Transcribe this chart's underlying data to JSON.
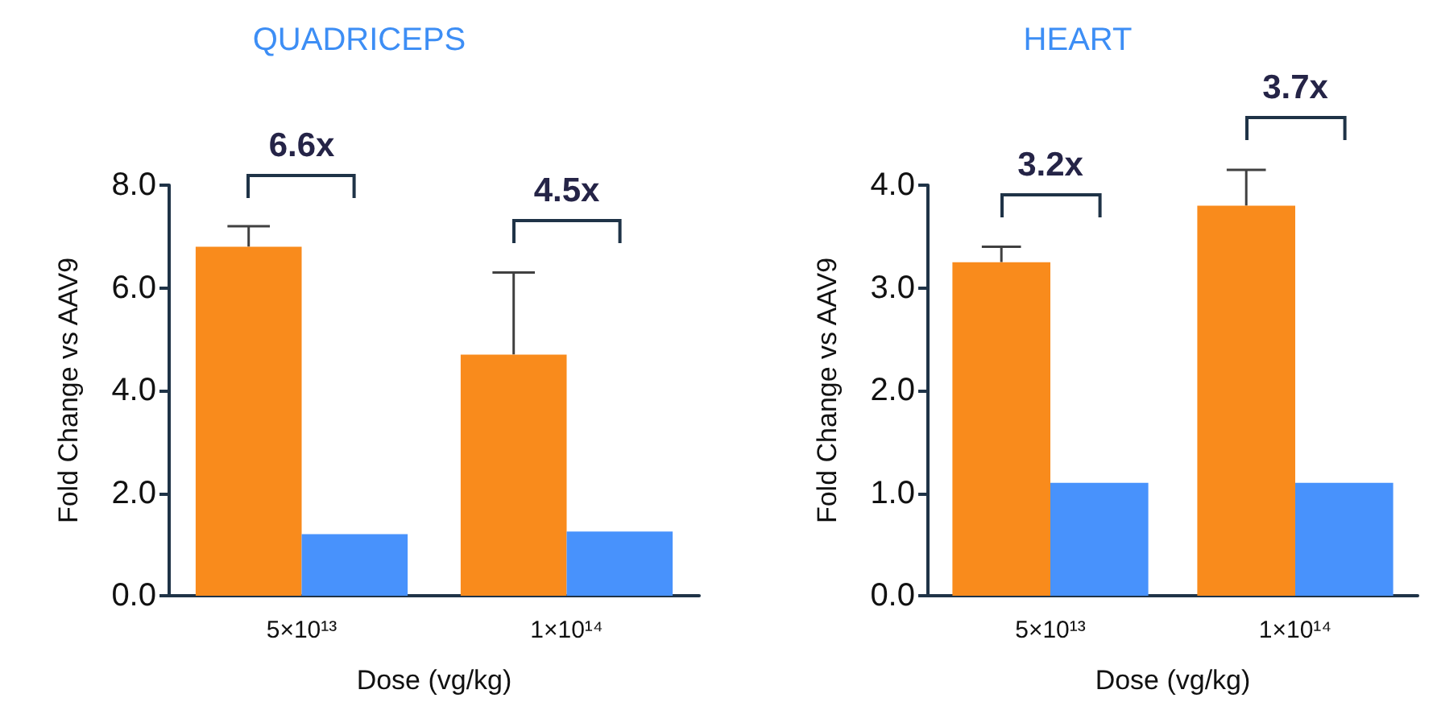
{
  "chart_data": [
    {
      "type": "bar",
      "title": "QUADRICEPS",
      "xlabel": "Dose (vg/kg)",
      "ylabel": "Fold Change vs AAV9",
      "categories": [
        "5×10¹³",
        "1×10¹⁴"
      ],
      "series": [
        {
          "color": "#f98b1c",
          "values": [
            6.8,
            4.7
          ],
          "errors": [
            0.4,
            1.6
          ]
        },
        {
          "color": "#4892fc",
          "values": [
            1.2,
            1.25
          ]
        }
      ],
      "ylim": [
        0,
        8
      ],
      "yticks": [
        {
          "value": 0,
          "label": "0.0"
        },
        {
          "value": 2,
          "label": "2.0"
        },
        {
          "value": 4,
          "label": "4.0"
        },
        {
          "value": 6,
          "label": "6.0"
        },
        {
          "value": 8,
          "label": "8.0"
        }
      ],
      "annotations": [
        "6.6x",
        "4.5x"
      ],
      "grid": false
    },
    {
      "type": "bar",
      "title": "HEART",
      "xlabel": "Dose (vg/kg)",
      "ylabel": "Fold Change vs AAV9",
      "categories": [
        "5×10¹³",
        "1×10¹⁴"
      ],
      "series": [
        {
          "color": "#f98b1c",
          "values": [
            3.25,
            3.8
          ],
          "errors": [
            0.15,
            0.35
          ]
        },
        {
          "color": "#4892fc",
          "values": [
            1.1,
            1.1
          ]
        }
      ],
      "ylim": [
        0,
        4
      ],
      "yticks": [
        {
          "value": 0,
          "label": "0.0"
        },
        {
          "value": 1,
          "label": "1.0"
        },
        {
          "value": 2,
          "label": "2.0"
        },
        {
          "value": 3,
          "label": "3.0"
        },
        {
          "value": 4,
          "label": "4.0"
        }
      ],
      "annotations": [
        "3.2x",
        "3.7x"
      ],
      "grid": false
    }
  ]
}
